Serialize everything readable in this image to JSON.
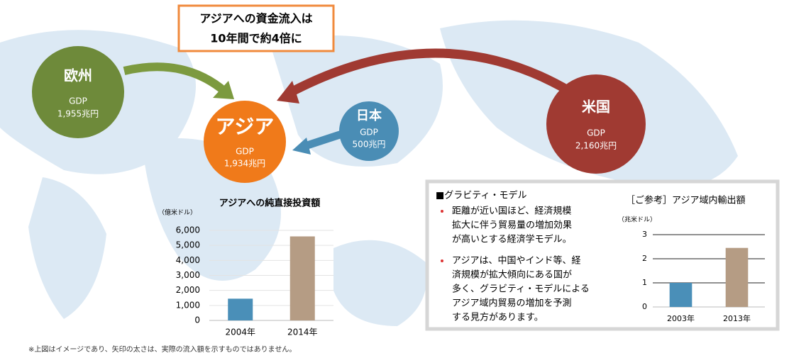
{
  "callout": {
    "lines": [
      "アジアへの資金流入は",
      "10年間で約4倍に"
    ]
  },
  "nodes": [
    {
      "label": "欧州",
      "gdp_label": "GDP",
      "gdp": "1,955兆円"
    },
    {
      "label": "アジア",
      "gdp_label": "GDP",
      "gdp": "1,934兆円"
    },
    {
      "label": "日本",
      "gdp_label": "GDP",
      "gdp": "500兆円"
    },
    {
      "label": "米国",
      "gdp_label": "GDP",
      "gdp": "2,160兆円"
    }
  ],
  "gravity": {
    "heading": "■グラビティ・モデル",
    "bullets": [
      [
        "距離が近い国ほど、経済規模",
        "拡大に伴う貿易量の増加効果",
        "が高いとする経済学モデル。"
      ],
      [
        "アジアは、中国やインド等、経",
        "済規模が拡大傾向にある国が",
        "多く、グラビティ・モデルによる",
        "アジア域内貿易の増加を予測",
        "する見方があります。"
      ]
    ]
  },
  "footnote": "※上図はイメージであり、矢印の太さは、実際の流入額を示すものではありません。",
  "chart_data": [
    {
      "type": "bar",
      "title": "アジアへの純直接投資額",
      "y_label": "（億米ドル）",
      "categories": [
        "2004年",
        "2014年"
      ],
      "values": [
        1450,
        5600
      ],
      "colors": [
        "#4a8fb8",
        "#b59c84"
      ],
      "ylim": [
        0,
        6000
      ],
      "yticks": [
        0,
        {
          "value": 1000,
          "label": "1,000"
        },
        {
          "value": 2000,
          "label": "2,000"
        },
        {
          "value": 3000,
          "label": "3,000"
        },
        {
          "value": 4000,
          "label": "4,000"
        },
        {
          "value": 5000,
          "label": "5,000"
        },
        {
          "value": 6000,
          "label": "6,000"
        }
      ],
      "grid": true
    },
    {
      "type": "bar",
      "title": "［ご参考］アジア域内輸出額",
      "y_label": "（兆米ドル）",
      "categories": [
        "2003年",
        "2013年"
      ],
      "values": [
        1.0,
        2.45
      ],
      "colors": [
        "#4a8fb8",
        "#b59c84"
      ],
      "ylim": [
        0,
        3
      ],
      "yticks": [
        0,
        1,
        2,
        3
      ],
      "grid": true
    }
  ]
}
